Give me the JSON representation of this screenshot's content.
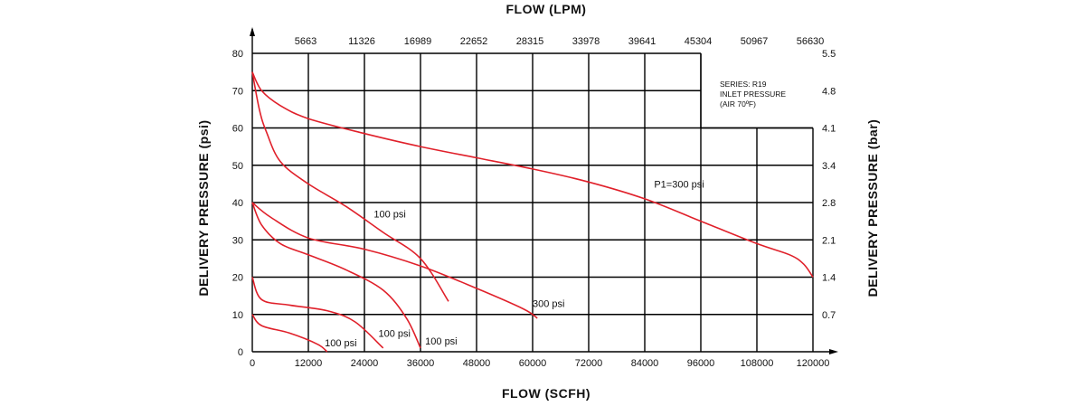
{
  "chart_data": {
    "type": "line",
    "title": "FLOW (LPM)",
    "xlabel": "FLOW (SCFH)",
    "ylabel": "DELIVERY PRESSURE (psi)",
    "ylabel_right": "DELIVERY PRESSURE (bar)",
    "xlim": [
      0,
      120000
    ],
    "ylim": [
      0,
      80
    ],
    "x_ticks": [
      "0",
      "12000",
      "24000",
      "36000",
      "48000",
      "60000",
      "72000",
      "84000",
      "96000",
      "108000",
      "120000"
    ],
    "y_ticks": [
      "0",
      "10",
      "20",
      "30",
      "40",
      "50",
      "60",
      "70",
      "80"
    ],
    "top_ticks": [
      "5663",
      "11326",
      "16989",
      "22652",
      "28315",
      "33978",
      "39641",
      "45304",
      "50967",
      "56630"
    ],
    "right_ticks": [
      "0.7",
      "1.4",
      "2.1",
      "2.8",
      "3.4",
      "4.1",
      "4.8",
      "5.5"
    ],
    "note": [
      "SERIES: R19",
      "INLET PRESSURE",
      "(AIR 70ºF)"
    ],
    "grid": true,
    "series": [
      {
        "name": "P1=300 psi",
        "label": "P1=300 psi",
        "color": "#e0202a",
        "points": [
          [
            0,
            75
          ],
          [
            2000,
            70
          ],
          [
            6000,
            66
          ],
          [
            12000,
            62.5
          ],
          [
            24000,
            58.5
          ],
          [
            36000,
            55
          ],
          [
            48000,
            52
          ],
          [
            60000,
            49
          ],
          [
            72000,
            45.5
          ],
          [
            84000,
            41
          ],
          [
            96000,
            35
          ],
          [
            108000,
            29
          ],
          [
            115000,
            26
          ],
          [
            118000,
            23.5
          ],
          [
            120000,
            20
          ]
        ]
      },
      {
        "name": "100 psi",
        "label": "100 psi",
        "color": "#e0202a",
        "points": [
          [
            0,
            75
          ],
          [
            1500,
            65
          ],
          [
            3000,
            59
          ],
          [
            6000,
            51
          ],
          [
            12000,
            45
          ],
          [
            20000,
            39
          ],
          [
            28000,
            32
          ],
          [
            36000,
            25
          ],
          [
            42000,
            13.5
          ]
        ]
      },
      {
        "name": "300 psi",
        "label": "300 psi",
        "color": "#e0202a",
        "points": [
          [
            0,
            40
          ],
          [
            4000,
            36
          ],
          [
            12000,
            30.5
          ],
          [
            24000,
            27.5
          ],
          [
            36000,
            23
          ],
          [
            48000,
            17
          ],
          [
            58000,
            11.5
          ],
          [
            61000,
            9
          ]
        ]
      },
      {
        "name": "100 psi",
        "label": "100 psi",
        "color": "#e0202a",
        "points": [
          [
            0,
            40
          ],
          [
            2000,
            34
          ],
          [
            6000,
            29
          ],
          [
            12000,
            26
          ],
          [
            20000,
            22
          ],
          [
            28000,
            16.5
          ],
          [
            33000,
            9
          ],
          [
            36000,
            1
          ]
        ]
      },
      {
        "name": "100 psi",
        "label": "100 psi",
        "color": "#e0202a",
        "points": [
          [
            0,
            20
          ],
          [
            2000,
            14
          ],
          [
            8000,
            12.5
          ],
          [
            16000,
            11
          ],
          [
            22000,
            8
          ],
          [
            28000,
            1
          ]
        ]
      },
      {
        "name": "100 psi",
        "label": "100 psi",
        "color": "#e0202a",
        "points": [
          [
            0,
            10
          ],
          [
            2000,
            7
          ],
          [
            8000,
            5
          ],
          [
            14000,
            2
          ],
          [
            16000,
            0
          ]
        ]
      }
    ],
    "curve_labels": [
      {
        "text": "P1=300 psi",
        "x": 86000,
        "y": 44
      },
      {
        "text": "100 psi",
        "x": 26000,
        "y": 36
      },
      {
        "text": "300 psi",
        "x": 60000,
        "y": 12
      },
      {
        "text": "100 psi",
        "x": 27000,
        "y": 4
      },
      {
        "text": "100 psi",
        "x": 37000,
        "y": 2
      },
      {
        "text": "100 psi",
        "x": 15500,
        "y": 1.5
      }
    ]
  }
}
